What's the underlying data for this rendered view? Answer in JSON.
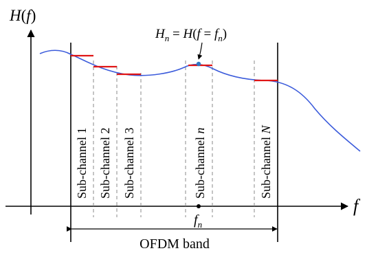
{
  "axes": {
    "y_label": {
      "main": "H",
      "open": "(",
      "var": "f",
      "close": ")"
    },
    "x_label": "f"
  },
  "annotation": {
    "lhs_var": "H",
    "lhs_sub": "n",
    "eq": " = ",
    "rhs_func": "H",
    "rhs_open": "(",
    "rhs_var": "f",
    "rhs_eq": " = ",
    "rhs_fvar": "f",
    "rhs_sub": "n",
    "rhs_close": ")"
  },
  "subchannels": [
    {
      "prefix": "Sub-channel ",
      "suffix": "1",
      "suffix_italic": false
    },
    {
      "prefix": "Sub-channel ",
      "suffix": "2",
      "suffix_italic": false
    },
    {
      "prefix": "Sub-channel ",
      "suffix": "3",
      "suffix_italic": false
    },
    {
      "prefix": "Sub-channel ",
      "suffix": "n",
      "suffix_italic": true
    },
    {
      "prefix": "Sub-channel ",
      "suffix": "N",
      "suffix_italic": true
    }
  ],
  "fn_label": {
    "var": "f",
    "sub": "n"
  },
  "band_label": "OFDM band",
  "colors": {
    "curve": "#3b5bdb",
    "step": "#e01515",
    "point": "#2f78c4",
    "axis": "#000000",
    "divider": "#888888"
  }
}
